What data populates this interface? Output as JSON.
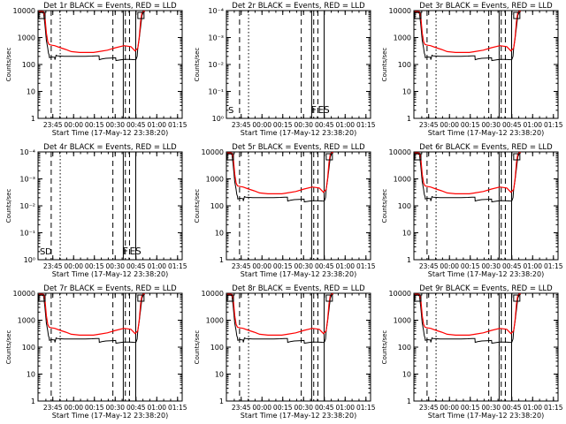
{
  "figure": {
    "xlabel": "Start Time (17-May-12 23:38:20)",
    "ylabel": "Counts/sec",
    "x_ticks": [
      "23:45",
      "00:00",
      "00:15",
      "00:30",
      "00:45",
      "01:00",
      "01:15"
    ]
  },
  "chart_data": [
    {
      "type": "line",
      "title": "Det 1r BLACK = Events, RED = LLD",
      "ylabel": "Counts/sec",
      "xlabel": "",
      "x_unit": "minutes after 23:38:20",
      "yscale": "log",
      "ylim": [
        1,
        10000
      ],
      "xlim": [
        -4,
        100
      ],
      "y_ticks": [
        "1",
        "10",
        "100",
        "1000",
        "10000"
      ],
      "empty": false,
      "row": 0,
      "col": 0,
      "markers": [],
      "bottom_labels": []
    },
    {
      "type": "line",
      "title": "Det 2r BLACK = Events, RED = LLD",
      "ylabel": "Counts/sec",
      "xlabel": "",
      "x_unit": "minutes after 23:38:20",
      "yscale": "log",
      "ylim": [
        1,
        0.0001
      ],
      "xlim": [
        -4,
        100
      ],
      "y_ticks": [
        "10⁰",
        "10⁻¹",
        "10⁻²",
        "10⁻³",
        "10⁻⁴"
      ],
      "empty": true,
      "row": 0,
      "col": 1,
      "markers": [
        "F",
        "E",
        "S"
      ],
      "bottom_labels": [
        "S"
      ]
    },
    {
      "type": "line",
      "title": "Det 3r BLACK = Events, RED = LLD",
      "ylabel": "Counts/sec",
      "xlabel": "",
      "x_unit": "minutes after 23:38:20",
      "yscale": "log",
      "ylim": [
        1,
        10000
      ],
      "xlim": [
        -4,
        100
      ],
      "y_ticks": [
        "1",
        "10",
        "100",
        "1000",
        "10000"
      ],
      "empty": false,
      "row": 0,
      "col": 2,
      "markers": [],
      "bottom_labels": []
    },
    {
      "type": "line",
      "title": "Det 4r BLACK = Events, RED = LLD",
      "ylabel": "Counts/sec",
      "xlabel": "",
      "x_unit": "minutes after 23:38:20",
      "yscale": "log",
      "ylim": [
        1,
        0.0001
      ],
      "xlim": [
        -4,
        100
      ],
      "y_ticks": [
        "10⁰",
        "10⁻¹",
        "10⁻²",
        "10⁻³",
        "10⁻⁴"
      ],
      "empty": true,
      "row": 1,
      "col": 0,
      "markers": [
        "F",
        "E",
        "S"
      ],
      "bottom_labels": [
        "S",
        "D"
      ]
    },
    {
      "type": "line",
      "title": "Det 5r BLACK = Events, RED = LLD",
      "ylabel": "Counts/sec",
      "xlabel": "",
      "x_unit": "minutes after 23:38:20",
      "yscale": "log",
      "ylim": [
        1,
        10000
      ],
      "xlim": [
        -4,
        100
      ],
      "y_ticks": [
        "1",
        "10",
        "100",
        "1000",
        "10000"
      ],
      "empty": false,
      "row": 1,
      "col": 1,
      "markers": [],
      "bottom_labels": []
    },
    {
      "type": "line",
      "title": "Det 6r BLACK = Events, RED = LLD",
      "ylabel": "Counts/sec",
      "xlabel": "",
      "x_unit": "minutes after 23:38:20",
      "yscale": "log",
      "ylim": [
        1,
        10000
      ],
      "xlim": [
        -4,
        100
      ],
      "y_ticks": [
        "1",
        "10",
        "100",
        "1000",
        "10000"
      ],
      "empty": false,
      "row": 1,
      "col": 2,
      "markers": [],
      "bottom_labels": []
    },
    {
      "type": "line",
      "title": "Det 7r BLACK = Events, RED = LLD",
      "ylabel": "Counts/sec",
      "xlabel": "",
      "x_unit": "minutes after 23:38:20",
      "yscale": "log",
      "ylim": [
        1,
        10000
      ],
      "xlim": [
        -4,
        100
      ],
      "y_ticks": [
        "1",
        "10",
        "100",
        "1000",
        "10000"
      ],
      "empty": false,
      "row": 2,
      "col": 0,
      "markers": [],
      "bottom_labels": []
    },
    {
      "type": "line",
      "title": "Det 8r BLACK = Events, RED = LLD",
      "ylabel": "Counts/sec",
      "xlabel": "",
      "x_unit": "minutes after 23:38:20",
      "yscale": "log",
      "ylim": [
        1,
        10000
      ],
      "xlim": [
        -4,
        100
      ],
      "y_ticks": [
        "1",
        "10",
        "100",
        "1000",
        "10000"
      ],
      "empty": false,
      "row": 2,
      "col": 1,
      "markers": [],
      "bottom_labels": []
    },
    {
      "type": "line",
      "title": "Det 9r BLACK = Events, RED = LLD",
      "ylabel": "Counts/sec",
      "xlabel": "",
      "x_unit": "minutes after 23:38:20",
      "yscale": "log",
      "ylim": [
        1,
        10000
      ],
      "xlim": [
        -4,
        100
      ],
      "y_ticks": [
        "1",
        "10",
        "100",
        "1000",
        "10000"
      ],
      "empty": false,
      "row": 2,
      "col": 2,
      "markers": [],
      "bottom_labels": []
    }
  ],
  "shared_series": {
    "events_black": {
      "color": "#000000",
      "x": [
        -3.5,
        -1,
        0,
        1,
        2,
        3,
        3.5,
        4,
        4.2,
        6,
        8,
        8.2,
        9,
        10,
        15,
        20,
        25,
        30,
        35,
        38,
        40,
        40.2,
        42,
        45,
        50,
        52,
        52.2,
        54,
        56,
        58,
        62,
        65,
        66.6
      ],
      "y": [
        8500,
        8500,
        8000,
        3000,
        800,
        400,
        260,
        230,
        180,
        190,
        185,
        150,
        220,
        210,
        200,
        200,
        200,
        200,
        205,
        210,
        210,
        150,
        160,
        170,
        175,
        178,
        140,
        145,
        150,
        155,
        155,
        152,
        150
      ]
    },
    "lld_red": {
      "color": "#ff0000",
      "x": [
        -3.5,
        -1,
        0,
        1,
        2,
        3,
        4,
        6,
        8,
        12,
        16,
        20,
        26,
        32,
        36,
        40,
        46,
        52,
        58,
        63,
        66,
        68,
        69,
        70,
        71,
        72,
        73
      ],
      "y": [
        9200,
        9200,
        9000,
        6000,
        1500,
        700,
        550,
        520,
        500,
        420,
        360,
        300,
        280,
        280,
        280,
        300,
        340,
        420,
        500,
        460,
        320,
        400,
        1000,
        4000,
        8500,
        9300,
        9500
      ]
    },
    "events_recovery": {
      "color": "#000000",
      "x": [
        66.6,
        67.5,
        68,
        69,
        70,
        71,
        72,
        73
      ],
      "y": [
        150,
        200,
        400,
        900,
        2500,
        6500,
        8800,
        9200
      ]
    },
    "vlines": {
      "dashed_minutes": [
        5.5,
        50,
        59,
        62
      ],
      "dotted_minutes": [
        12
      ],
      "solid_minutes": [
        57.5,
        66.5
      ]
    }
  }
}
